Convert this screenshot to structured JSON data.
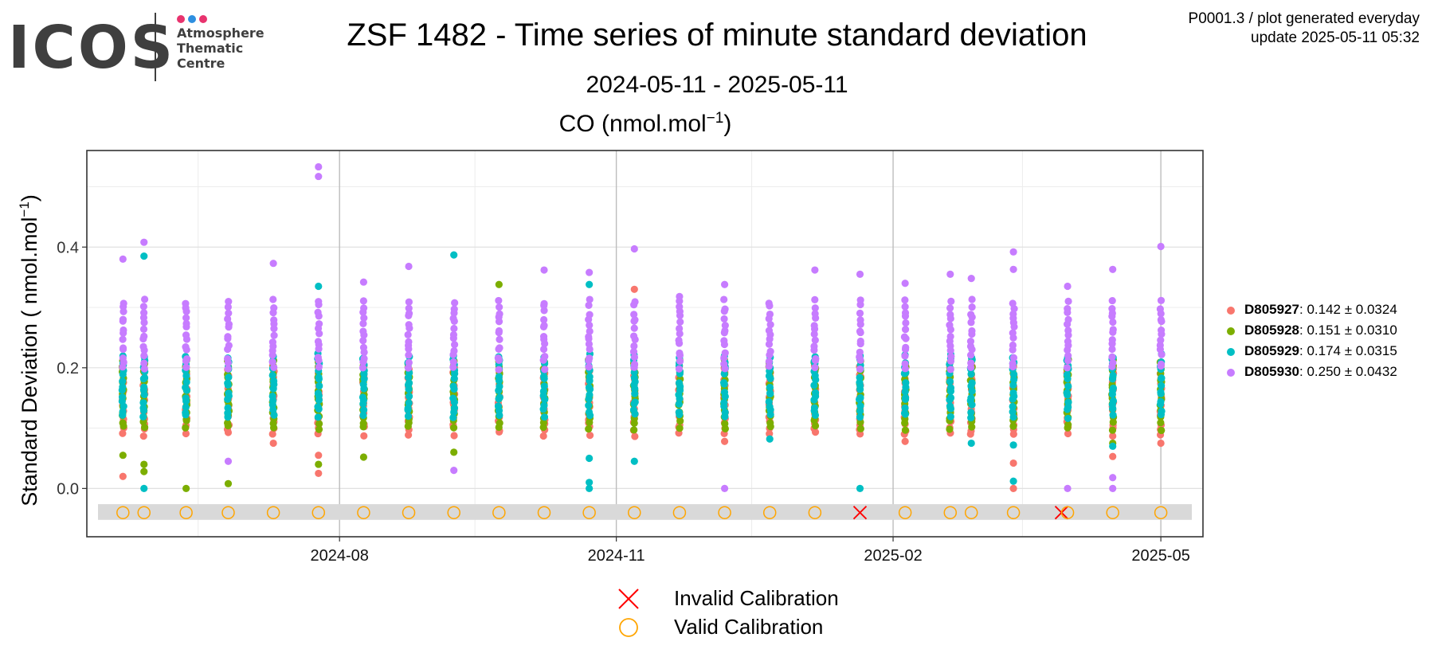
{
  "logo": {
    "text": "ICOS",
    "subtitle_lines": [
      "Atmosphere",
      "Thematic",
      "Centre"
    ],
    "dot_colors": [
      "#e8336e",
      "#2e8fe0",
      "#e8336e"
    ]
  },
  "header": {
    "title": "ZSF 1482 - Time series of minute standard deviation",
    "subtitle": "2024-05-11 - 2025-05-11",
    "meta_line1": "P0001.3 / plot generated everyday",
    "meta_line2": "update  2025-05-11 05:32"
  },
  "chart_data": {
    "type": "scatter",
    "title": "CO (nmol.mol⁻¹)",
    "title_base": "CO (nmol.mol",
    "title_sup": "−1",
    "title_close": ")",
    "ylabel_base": "Standard Deviation ( nmol.mol",
    "ylabel_sup": "−1",
    "ylabel_close": ")",
    "y_ticks": [
      "0.0",
      "0.2",
      "0.4"
    ],
    "x_ticks": [
      "2024-08",
      "2024-11",
      "2025-02",
      "2025-05"
    ],
    "x_range": [
      "2024-05-09",
      "2025-05-15"
    ],
    "y_range": [
      -0.08,
      0.56
    ],
    "grid": true,
    "legend_position": "right",
    "series": [
      {
        "name": "D805927",
        "stats": "0.142 ± 0.0324",
        "color": "#F8766D",
        "range": [
          0.09,
          0.2
        ]
      },
      {
        "name": "D805928",
        "stats": "0.151 ± 0.0310",
        "color": "#7CAE00",
        "range": [
          0.1,
          0.21
        ]
      },
      {
        "name": "D805929",
        "stats": "0.174 ± 0.0315",
        "color": "#00BFC4",
        "range": [
          0.12,
          0.22
        ]
      },
      {
        "name": "D805930",
        "stats": "0.250 ± 0.0432",
        "color": "#C77CFF",
        "range": [
          0.2,
          0.31
        ]
      }
    ],
    "measurement_dates": [
      "2024-05-21",
      "2024-05-28",
      "2024-06-11",
      "2024-06-25",
      "2024-07-10",
      "2024-07-25",
      "2024-08-09",
      "2024-08-24",
      "2024-09-08",
      "2024-09-23",
      "2024-10-08",
      "2024-10-23",
      "2024-11-07",
      "2024-11-22",
      "2024-12-07",
      "2024-12-22",
      "2025-01-06",
      "2025-01-21",
      "2025-02-05",
      "2025-02-20",
      "2025-02-27",
      "2025-03-13",
      "2025-03-31",
      "2025-04-15",
      "2025-05-01"
    ],
    "outliers": [
      {
        "date": "2024-05-21",
        "series": "D805927",
        "y": 0.02
      },
      {
        "date": "2024-05-21",
        "series": "D805928",
        "y": 0.055
      },
      {
        "date": "2024-05-21",
        "series": "D805930",
        "y": 0.38
      },
      {
        "date": "2024-05-28",
        "series": "D805929",
        "y": 0.0
      },
      {
        "date": "2024-05-28",
        "series": "D805928",
        "y": 0.04
      },
      {
        "date": "2024-05-28",
        "series": "D805928",
        "y": 0.028
      },
      {
        "date": "2024-05-28",
        "series": "D805929",
        "y": 0.385
      },
      {
        "date": "2024-05-28",
        "series": "D805930",
        "y": 0.408
      },
      {
        "date": "2024-06-11",
        "series": "D805928",
        "y": 0.0
      },
      {
        "date": "2024-06-25",
        "series": "D805928",
        "y": 0.008
      },
      {
        "date": "2024-06-25",
        "series": "D805930",
        "y": 0.045
      },
      {
        "date": "2024-07-10",
        "series": "D805927",
        "y": 0.075
      },
      {
        "date": "2024-07-10",
        "series": "D805930",
        "y": 0.373
      },
      {
        "date": "2024-07-25",
        "series": "D805930",
        "y": 0.533
      },
      {
        "date": "2024-07-25",
        "series": "D805930",
        "y": 0.517
      },
      {
        "date": "2024-07-25",
        "series": "D805929",
        "y": 0.335
      },
      {
        "date": "2024-07-25",
        "series": "D805927",
        "y": 0.055
      },
      {
        "date": "2024-07-25",
        "series": "D805928",
        "y": 0.04
      },
      {
        "date": "2024-07-25",
        "series": "D805927",
        "y": 0.025
      },
      {
        "date": "2024-08-09",
        "series": "D805928",
        "y": 0.052
      },
      {
        "date": "2024-08-09",
        "series": "D805930",
        "y": 0.342
      },
      {
        "date": "2024-08-24",
        "series": "D805930",
        "y": 0.368
      },
      {
        "date": "2024-09-08",
        "series": "D805929",
        "y": 0.387
      },
      {
        "date": "2024-09-08",
        "series": "D805928",
        "y": 0.06
      },
      {
        "date": "2024-09-08",
        "series": "D805930",
        "y": 0.03
      },
      {
        "date": "2024-09-23",
        "series": "D805928",
        "y": 0.338
      },
      {
        "date": "2024-10-08",
        "series": "D805930",
        "y": 0.362
      },
      {
        "date": "2024-10-23",
        "series": "D805930",
        "y": 0.358
      },
      {
        "date": "2024-10-23",
        "series": "D805929",
        "y": 0.338
      },
      {
        "date": "2024-10-23",
        "series": "D805929",
        "y": 0.05
      },
      {
        "date": "2024-10-23",
        "series": "D805929",
        "y": 0.01
      },
      {
        "date": "2024-10-23",
        "series": "D805929",
        "y": 0.0
      },
      {
        "date": "2024-11-07",
        "series": "D805930",
        "y": 0.397
      },
      {
        "date": "2024-11-07",
        "series": "D805927",
        "y": 0.33
      },
      {
        "date": "2024-11-07",
        "series": "D805929",
        "y": 0.045
      },
      {
        "date": "2024-11-22",
        "series": "D805930",
        "y": 0.318
      },
      {
        "date": "2024-12-07",
        "series": "D805930",
        "y": 0.0
      },
      {
        "date": "2024-12-07",
        "series": "D805927",
        "y": 0.078
      },
      {
        "date": "2024-12-07",
        "series": "D805930",
        "y": 0.338
      },
      {
        "date": "2024-12-22",
        "series": "D805929",
        "y": 0.082
      },
      {
        "date": "2025-01-06",
        "series": "D805930",
        "y": 0.362
      },
      {
        "date": "2025-01-21",
        "series": "D805930",
        "y": 0.355
      },
      {
        "date": "2025-01-21",
        "series": "D805929",
        "y": 0.0
      },
      {
        "date": "2025-02-05",
        "series": "D805927",
        "y": 0.078
      },
      {
        "date": "2025-02-05",
        "series": "D805930",
        "y": 0.34
      },
      {
        "date": "2025-02-20",
        "series": "D805930",
        "y": 0.355
      },
      {
        "date": "2025-02-27",
        "series": "D805929",
        "y": 0.075
      },
      {
        "date": "2025-02-27",
        "series": "D805930",
        "y": 0.348
      },
      {
        "date": "2025-03-13",
        "series": "D805930",
        "y": 0.392
      },
      {
        "date": "2025-03-13",
        "series": "D805930",
        "y": 0.363
      },
      {
        "date": "2025-03-13",
        "series": "D805929",
        "y": 0.072
      },
      {
        "date": "2025-03-13",
        "series": "D805927",
        "y": 0.042
      },
      {
        "date": "2025-03-13",
        "series": "D805929",
        "y": 0.012
      },
      {
        "date": "2025-03-13",
        "series": "D805927",
        "y": 0.0
      },
      {
        "date": "2025-03-31",
        "series": "D805930",
        "y": 0.0
      },
      {
        "date": "2025-03-31",
        "series": "D805930",
        "y": 0.335
      },
      {
        "date": "2025-04-15",
        "series": "D805930",
        "y": 0.363
      },
      {
        "date": "2025-04-15",
        "series": "D805927",
        "y": 0.053
      },
      {
        "date": "2025-04-15",
        "series": "D805928",
        "y": 0.075
      },
      {
        "date": "2025-04-15",
        "series": "D805929",
        "y": 0.07
      },
      {
        "date": "2025-04-15",
        "series": "D805930",
        "y": 0.018
      },
      {
        "date": "2025-04-15",
        "series": "D805930",
        "y": 0.0
      },
      {
        "date": "2025-05-01",
        "series": "D805930",
        "y": 0.401
      },
      {
        "date": "2025-05-01",
        "series": "D805927",
        "y": 0.075
      }
    ],
    "calibrations": [
      {
        "date": "2024-05-21",
        "valid": true
      },
      {
        "date": "2024-05-28",
        "valid": true
      },
      {
        "date": "2024-06-11",
        "valid": true
      },
      {
        "date": "2024-06-25",
        "valid": true
      },
      {
        "date": "2024-07-10",
        "valid": true
      },
      {
        "date": "2024-07-25",
        "valid": true
      },
      {
        "date": "2024-08-09",
        "valid": true
      },
      {
        "date": "2024-08-24",
        "valid": true
      },
      {
        "date": "2024-09-08",
        "valid": true
      },
      {
        "date": "2024-09-23",
        "valid": true
      },
      {
        "date": "2024-10-08",
        "valid": true
      },
      {
        "date": "2024-10-23",
        "valid": true
      },
      {
        "date": "2024-11-07",
        "valid": true
      },
      {
        "date": "2024-11-22",
        "valid": true
      },
      {
        "date": "2024-12-07",
        "valid": true
      },
      {
        "date": "2024-12-22",
        "valid": true
      },
      {
        "date": "2025-01-06",
        "valid": true
      },
      {
        "date": "2025-01-21",
        "valid": false
      },
      {
        "date": "2025-02-05",
        "valid": true
      },
      {
        "date": "2025-02-20",
        "valid": true
      },
      {
        "date": "2025-02-27",
        "valid": true
      },
      {
        "date": "2025-03-13",
        "valid": true
      },
      {
        "date": "2025-03-29",
        "valid": false
      },
      {
        "date": "2025-03-31",
        "valid": true
      },
      {
        "date": "2025-04-15",
        "valid": true
      },
      {
        "date": "2025-05-01",
        "valid": true
      }
    ],
    "calibration_legend": {
      "invalid_label": "Invalid Calibration",
      "valid_label": "Valid Calibration",
      "invalid_color": "#FF0000",
      "valid_color": "#FFA500"
    }
  }
}
